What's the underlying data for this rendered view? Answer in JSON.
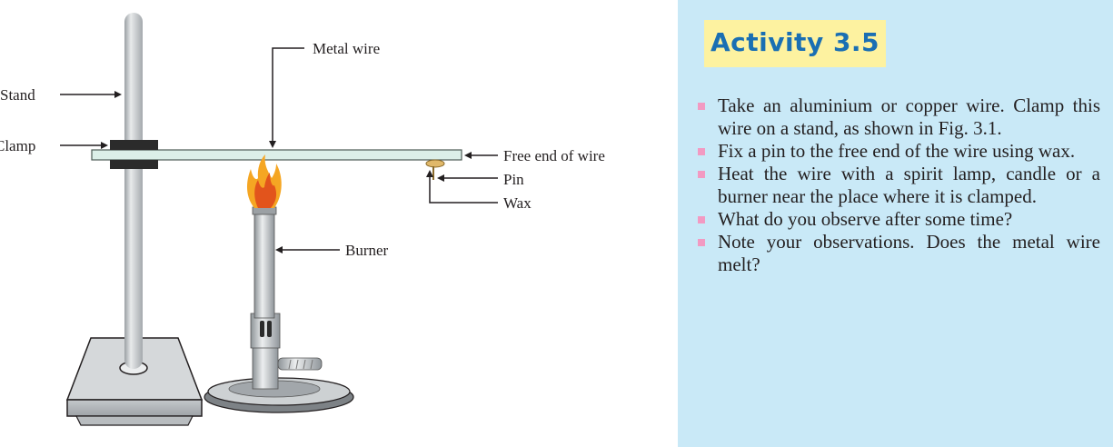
{
  "figure": {
    "labels": {
      "stand": "Stand",
      "clamp": "Clamp",
      "metal_wire": "Metal wire",
      "free_end": "Free end of wire",
      "pin": "Pin",
      "wax": "Wax",
      "burner": "Burner"
    },
    "colors": {
      "stand_rod": "#cfd3d6",
      "wire": "#d9ece6",
      "flame_outer": "#f5a623",
      "flame_inner": "#e2541c",
      "base": "#d6d9db"
    }
  },
  "activity": {
    "title": "Activity 3.5",
    "colors": {
      "panel_bg": "#c9e9f7",
      "title_bg": "#fdf2a0",
      "title_text": "#1a6fb3",
      "bullet": "#f29ac2"
    },
    "steps": [
      "Take an aluminium or copper wire. Clamp this wire on a stand, as shown in Fig. 3.1.",
      "Fix a pin to the free end of the wire using wax.",
      "Heat the wire with a spirit lamp, candle or a burner near the place where it is clamped.",
      "What do you observe after some time?",
      "Note your observations. Does the metal wire melt?"
    ]
  }
}
